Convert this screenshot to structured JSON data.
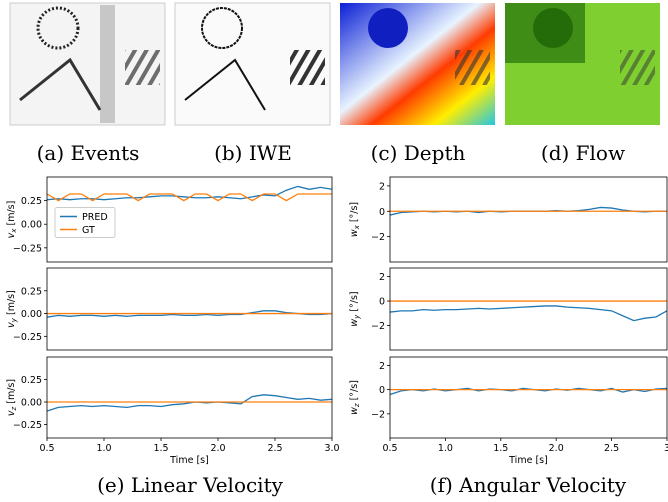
{
  "image_captions": [
    "(a) Events",
    "(b) IWE",
    "(c) Depth",
    "(d) Flow"
  ],
  "chart_captions": [
    "(e) Linear Velocity",
    "(f) Angular Velocity"
  ],
  "chart_data": [
    {
      "type": "line",
      "ylabel_var": "v",
      "ylabel_sub": "x",
      "ylabel_unit": "[m/s]",
      "legend": "center left",
      "x": [
        0.5,
        0.6,
        0.7,
        0.8,
        0.9,
        1.0,
        1.1,
        1.2,
        1.3,
        1.4,
        1.5,
        1.6,
        1.7,
        1.8,
        1.9,
        2.0,
        2.1,
        2.2,
        2.3,
        2.4,
        2.5,
        2.6,
        2.7,
        2.8,
        2.9,
        3.0
      ],
      "xlim": [
        0.5,
        3.0
      ],
      "ylim": [
        -0.4,
        0.5
      ],
      "yticks": [
        0.25,
        {
          "value": 0,
          "label": "0.00"
        },
        {
          "value": -0.25,
          "label": "−0.25"
        }
      ],
      "series": [
        {
          "name": "PRED",
          "color": "#1f77b4",
          "values": [
            0.26,
            0.27,
            0.26,
            0.27,
            0.27,
            0.26,
            0.27,
            0.28,
            0.28,
            0.29,
            0.3,
            0.3,
            0.29,
            0.28,
            0.28,
            0.29,
            0.28,
            0.27,
            0.29,
            0.31,
            0.3,
            0.36,
            0.4,
            0.37,
            0.39,
            0.37
          ]
        },
        {
          "name": "GT",
          "color": "#ff7f0e",
          "values": [
            0.32,
            0.25,
            0.32,
            0.32,
            0.25,
            0.32,
            0.32,
            0.32,
            0.25,
            0.32,
            0.32,
            0.32,
            0.25,
            0.32,
            0.32,
            0.25,
            0.32,
            0.32,
            0.25,
            0.32,
            0.32,
            0.25,
            0.32,
            0.32,
            0.32,
            0.32
          ]
        }
      ]
    },
    {
      "type": "line",
      "ylabel_var": "v",
      "ylabel_sub": "y",
      "ylabel_unit": "[m/s]",
      "x": [
        0.5,
        0.6,
        0.7,
        0.8,
        0.9,
        1.0,
        1.1,
        1.2,
        1.3,
        1.4,
        1.5,
        1.6,
        1.7,
        1.8,
        1.9,
        2.0,
        2.1,
        2.2,
        2.3,
        2.4,
        2.5,
        2.6,
        2.7,
        2.8,
        2.9,
        3.0
      ],
      "xlim": [
        0.5,
        3.0
      ],
      "ylim": [
        -0.4,
        0.5
      ],
      "yticks": [
        0.25,
        {
          "value": 0,
          "label": "0.00"
        },
        {
          "value": -0.25,
          "label": "−0.25"
        }
      ],
      "series": [
        {
          "name": "PRED",
          "color": "#1f77b4",
          "values": [
            -0.04,
            -0.02,
            -0.03,
            -0.02,
            -0.02,
            -0.03,
            -0.02,
            -0.03,
            -0.02,
            -0.02,
            -0.02,
            -0.01,
            -0.02,
            -0.02,
            -0.01,
            -0.02,
            -0.01,
            -0.01,
            0.01,
            0.03,
            0.03,
            0.01,
            0.0,
            -0.01,
            -0.01,
            0.0
          ]
        },
        {
          "name": "GT",
          "color": "#ff7f0e",
          "values": [
            0,
            0,
            0,
            0,
            0,
            0,
            0,
            0,
            0,
            0,
            0,
            0,
            0,
            0,
            0,
            0,
            0,
            0,
            0,
            0,
            0,
            0,
            0,
            0,
            0,
            0
          ]
        }
      ]
    },
    {
      "type": "line",
      "ylabel_var": "v",
      "ylabel_sub": "z",
      "ylabel_unit": "[m/s]",
      "xlabel": "Time [s]",
      "x": [
        0.5,
        0.6,
        0.7,
        0.8,
        0.9,
        1.0,
        1.1,
        1.2,
        1.3,
        1.4,
        1.5,
        1.6,
        1.7,
        1.8,
        1.9,
        2.0,
        2.1,
        2.2,
        2.3,
        2.4,
        2.5,
        2.6,
        2.7,
        2.8,
        2.9,
        3.0
      ],
      "xlim": [
        0.5,
        3.0
      ],
      "ylim": [
        -0.4,
        0.5
      ],
      "xticks": [
        0.5,
        {
          "value": 1,
          "label": "1.0"
        },
        1.5,
        {
          "value": 2,
          "label": "2.0"
        },
        2.5,
        {
          "value": 3,
          "label": "3.0"
        }
      ],
      "yticks": [
        0.25,
        {
          "value": 0,
          "label": "0.00"
        },
        {
          "value": -0.25,
          "label": "−0.25"
        }
      ],
      "series": [
        {
          "name": "PRED",
          "color": "#1f77b4",
          "values": [
            -0.1,
            -0.06,
            -0.05,
            -0.04,
            -0.05,
            -0.04,
            -0.05,
            -0.06,
            -0.04,
            -0.04,
            -0.05,
            -0.03,
            -0.02,
            0.0,
            -0.01,
            0.0,
            -0.01,
            -0.02,
            0.06,
            0.08,
            0.07,
            0.05,
            0.03,
            0.04,
            0.02,
            0.03
          ]
        },
        {
          "name": "GT",
          "color": "#ff7f0e",
          "values": [
            0,
            0,
            0,
            0,
            0,
            0,
            0,
            0,
            0,
            0,
            0,
            0,
            0,
            0,
            0,
            0,
            0,
            0,
            0,
            0,
            0,
            0,
            0,
            0,
            0,
            0
          ]
        }
      ]
    },
    {
      "type": "line",
      "ylabel_var": "w",
      "ylabel_sub": "x",
      "ylabel_unit": "[°/s]",
      "x": [
        0.5,
        0.6,
        0.7,
        0.8,
        0.9,
        1.0,
        1.1,
        1.2,
        1.3,
        1.4,
        1.5,
        1.6,
        1.7,
        1.8,
        1.9,
        2.0,
        2.1,
        2.2,
        2.3,
        2.4,
        2.5,
        2.6,
        2.7,
        2.8,
        2.9,
        3.0
      ],
      "xlim": [
        0.5,
        3.0
      ],
      "ylim": [
        -4,
        2.7
      ],
      "yticks": [
        2,
        0,
        {
          "value": -2,
          "label": "−2"
        }
      ],
      "series": [
        {
          "name": "PRED",
          "color": "#1f77b4",
          "values": [
            -0.3,
            -0.1,
            -0.05,
            0,
            -0.05,
            0,
            -0.05,
            0,
            -0.1,
            0,
            -0.05,
            0,
            0,
            0,
            0,
            0.05,
            0,
            0.05,
            0.15,
            0.3,
            0.25,
            0.1,
            0,
            -0.05,
            0,
            0
          ]
        },
        {
          "name": "GT",
          "color": "#ff7f0e",
          "values": [
            0,
            0,
            0,
            0,
            0,
            0,
            0,
            0,
            0,
            0,
            0,
            0,
            0,
            0,
            0,
            0,
            0,
            0,
            0,
            0,
            0,
            0,
            0,
            0,
            0,
            0
          ]
        }
      ]
    },
    {
      "type": "line",
      "ylabel_var": "w",
      "ylabel_sub": "y",
      "ylabel_unit": "[°/s]",
      "x": [
        0.5,
        0.6,
        0.7,
        0.8,
        0.9,
        1.0,
        1.1,
        1.2,
        1.3,
        1.4,
        1.5,
        1.6,
        1.7,
        1.8,
        1.9,
        2.0,
        2.1,
        2.2,
        2.3,
        2.4,
        2.5,
        2.6,
        2.7,
        2.8,
        2.9,
        3.0
      ],
      "xlim": [
        0.5,
        3.0
      ],
      "ylim": [
        -4,
        2.7
      ],
      "yticks": [
        2,
        0,
        {
          "value": -2,
          "label": "−2"
        }
      ],
      "series": [
        {
          "name": "PRED",
          "color": "#1f77b4",
          "values": [
            -0.9,
            -0.8,
            -0.8,
            -0.7,
            -0.75,
            -0.7,
            -0.7,
            -0.65,
            -0.6,
            -0.65,
            -0.6,
            -0.55,
            -0.5,
            -0.45,
            -0.4,
            -0.4,
            -0.5,
            -0.55,
            -0.6,
            -0.7,
            -0.8,
            -1.2,
            -1.6,
            -1.4,
            -1.3,
            -0.8
          ]
        },
        {
          "name": "GT",
          "color": "#ff7f0e",
          "values": [
            0,
            0,
            0,
            0,
            0,
            0,
            0,
            0,
            0,
            0,
            0,
            0,
            0,
            0,
            0,
            0,
            0,
            0,
            0,
            0,
            0,
            0,
            0,
            0,
            0,
            0
          ]
        }
      ]
    },
    {
      "type": "line",
      "ylabel_var": "w",
      "ylabel_sub": "z",
      "ylabel_unit": "[°/s]",
      "xlabel": "Time [s]",
      "x": [
        0.5,
        0.6,
        0.7,
        0.8,
        0.9,
        1.0,
        1.1,
        1.2,
        1.3,
        1.4,
        1.5,
        1.6,
        1.7,
        1.8,
        1.9,
        2.0,
        2.1,
        2.2,
        2.3,
        2.4,
        2.5,
        2.6,
        2.7,
        2.8,
        2.9,
        3.0
      ],
      "xlim": [
        0.5,
        3.0
      ],
      "ylim": [
        -4,
        2.7
      ],
      "xticks": [
        0.5,
        {
          "value": 1,
          "label": "1.0"
        },
        1.5,
        {
          "value": 2,
          "label": "2.0"
        },
        2.5,
        {
          "value": 3,
          "label": "3"
        }
      ],
      "yticks": [
        2,
        0,
        {
          "value": -2,
          "label": "−2"
        }
      ],
      "series": [
        {
          "name": "PRED",
          "color": "#1f77b4",
          "values": [
            -0.4,
            -0.1,
            0,
            -0.1,
            0.05,
            -0.1,
            0,
            0.1,
            -0.1,
            0.05,
            0,
            -0.1,
            0.1,
            0,
            -0.1,
            0.05,
            -0.05,
            0.1,
            0,
            -0.1,
            0.1,
            -0.2,
            0,
            -0.15,
            0.05,
            0.1
          ]
        },
        {
          "name": "GT",
          "color": "#ff7f0e",
          "values": [
            0,
            0,
            0,
            0,
            0,
            0,
            0,
            0,
            0,
            0,
            0,
            0,
            0,
            0,
            0,
            0,
            0,
            0,
            0,
            0,
            0,
            0,
            0,
            0,
            0,
            0
          ]
        }
      ]
    }
  ]
}
